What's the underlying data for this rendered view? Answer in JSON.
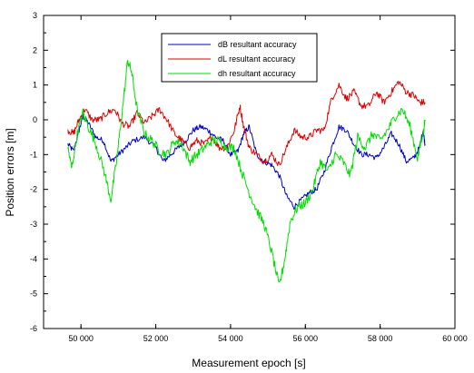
{
  "chart_data": {
    "type": "line",
    "xlabel": "Measurement epoch [s]",
    "ylabel": "Position errors [m]",
    "xlim": [
      49000,
      60000
    ],
    "ylim": [
      -6,
      3
    ],
    "x_ticks": [
      50000,
      52000,
      54000,
      56000,
      58000,
      60000
    ],
    "x_tick_labels": [
      "50 000",
      "52 000",
      "54 000",
      "56 000",
      "58 000",
      "60 000"
    ],
    "y_ticks": [
      -6,
      -5,
      -4,
      -3,
      -2,
      -1,
      0,
      1,
      2,
      3
    ],
    "y_tick_labels": [
      "-6",
      "-5",
      "-4",
      "-3",
      "-2",
      "-1",
      "0",
      "1",
      "2",
      "3"
    ],
    "grid": false,
    "legend_position": "top-center",
    "series": [
      {
        "name": "dB resultant accuracy",
        "color": "#0000cc",
        "points": [
          [
            49650,
            -0.7
          ],
          [
            49800,
            -0.9
          ],
          [
            49950,
            -0.3
          ],
          [
            50050,
            0.1
          ],
          [
            50200,
            -0.1
          ],
          [
            50400,
            -0.5
          ],
          [
            50600,
            -0.6
          ],
          [
            50800,
            -1.2
          ],
          [
            51000,
            -1.0
          ],
          [
            51200,
            -0.8
          ],
          [
            51400,
            -0.6
          ],
          [
            51700,
            -0.5
          ],
          [
            52000,
            -0.8
          ],
          [
            52200,
            -1.2
          ],
          [
            52400,
            -1.0
          ],
          [
            52600,
            -0.8
          ],
          [
            52800,
            -0.6
          ],
          [
            53000,
            -0.3
          ],
          [
            53200,
            -0.2
          ],
          [
            53400,
            -0.3
          ],
          [
            53600,
            -0.5
          ],
          [
            53800,
            -0.6
          ],
          [
            54000,
            -1.0
          ],
          [
            54200,
            -0.9
          ],
          [
            54350,
            -0.4
          ],
          [
            54500,
            -0.2
          ],
          [
            54700,
            -1.0
          ],
          [
            54900,
            -1.2
          ],
          [
            55100,
            -1.3
          ],
          [
            55300,
            -1.6
          ],
          [
            55500,
            -2.2
          ],
          [
            55700,
            -2.5
          ],
          [
            55900,
            -2.3
          ],
          [
            56100,
            -2.1
          ],
          [
            56300,
            -2.0
          ],
          [
            56500,
            -1.5
          ],
          [
            56700,
            -0.8
          ],
          [
            56900,
            -0.2
          ],
          [
            57100,
            -0.3
          ],
          [
            57300,
            -0.7
          ],
          [
            57500,
            -1.0
          ],
          [
            57700,
            -1.0
          ],
          [
            57900,
            -1.1
          ],
          [
            58100,
            -0.8
          ],
          [
            58300,
            -0.4
          ],
          [
            58500,
            -0.7
          ],
          [
            58700,
            -1.2
          ],
          [
            58900,
            -1.1
          ],
          [
            59050,
            -0.8
          ],
          [
            59150,
            -0.3
          ],
          [
            59200,
            -0.7
          ]
        ]
      },
      {
        "name": "dL resultant accuracy",
        "color": "#dd0000",
        "points": [
          [
            49650,
            -0.3
          ],
          [
            49800,
            -0.4
          ],
          [
            49950,
            0.0
          ],
          [
            50100,
            0.3
          ],
          [
            50300,
            0.0
          ],
          [
            50500,
            0.0
          ],
          [
            50700,
            0.2
          ],
          [
            50900,
            0.3
          ],
          [
            51100,
            -0.1
          ],
          [
            51300,
            -0.2
          ],
          [
            51500,
            0.2
          ],
          [
            51700,
            -0.1
          ],
          [
            51900,
            0.1
          ],
          [
            52100,
            0.3
          ],
          [
            52300,
            0.0
          ],
          [
            52500,
            -0.4
          ],
          [
            52700,
            -0.6
          ],
          [
            52900,
            -0.8
          ],
          [
            53100,
            -0.6
          ],
          [
            53300,
            -0.7
          ],
          [
            53500,
            -0.5
          ],
          [
            53700,
            -0.8
          ],
          [
            53900,
            -0.8
          ],
          [
            54100,
            -0.3
          ],
          [
            54250,
            0.4
          ],
          [
            54350,
            -0.2
          ],
          [
            54500,
            -0.8
          ],
          [
            54700,
            -1.0
          ],
          [
            54900,
            -1.2
          ],
          [
            55100,
            -1.0
          ],
          [
            55300,
            -1.3
          ],
          [
            55500,
            -0.8
          ],
          [
            55700,
            -0.3
          ],
          [
            55900,
            -0.5
          ],
          [
            56100,
            -0.5
          ],
          [
            56300,
            -0.3
          ],
          [
            56500,
            -0.3
          ],
          [
            56700,
            0.6
          ],
          [
            56900,
            1.0
          ],
          [
            57100,
            0.6
          ],
          [
            57300,
            0.8
          ],
          [
            57500,
            0.4
          ],
          [
            57700,
            0.4
          ],
          [
            57900,
            0.8
          ],
          [
            58100,
            0.5
          ],
          [
            58300,
            0.8
          ],
          [
            58500,
            1.1
          ],
          [
            58700,
            0.8
          ],
          [
            58900,
            0.7
          ],
          [
            59050,
            0.5
          ],
          [
            59200,
            0.5
          ]
        ]
      },
      {
        "name": "dh resultant accuracy",
        "color": "#00dd00",
        "points": [
          [
            49650,
            -0.8
          ],
          [
            49750,
            -1.4
          ],
          [
            49900,
            -0.4
          ],
          [
            50050,
            0.2
          ],
          [
            50200,
            -0.2
          ],
          [
            50400,
            -0.7
          ],
          [
            50600,
            -1.4
          ],
          [
            50800,
            -2.3
          ],
          [
            50950,
            -1.2
          ],
          [
            51100,
            0.2
          ],
          [
            51250,
            1.7
          ],
          [
            51350,
            1.4
          ],
          [
            51500,
            0.3
          ],
          [
            51700,
            -0.4
          ],
          [
            51900,
            -0.6
          ],
          [
            52100,
            -0.9
          ],
          [
            52300,
            -1.0
          ],
          [
            52500,
            -0.6
          ],
          [
            52700,
            -0.7
          ],
          [
            52900,
            -1.2
          ],
          [
            53100,
            -1.0
          ],
          [
            53300,
            -0.8
          ],
          [
            53500,
            -0.6
          ],
          [
            53700,
            -0.6
          ],
          [
            53900,
            -0.8
          ],
          [
            54100,
            -0.8
          ],
          [
            54300,
            -1.5
          ],
          [
            54500,
            -2.1
          ],
          [
            54700,
            -2.6
          ],
          [
            54900,
            -3.0
          ],
          [
            55100,
            -3.8
          ],
          [
            55300,
            -4.8
          ],
          [
            55450,
            -4.0
          ],
          [
            55600,
            -2.9
          ],
          [
            55800,
            -2.5
          ],
          [
            56000,
            -2.4
          ],
          [
            56200,
            -2.0
          ],
          [
            56400,
            -1.2
          ],
          [
            56600,
            -1.5
          ],
          [
            56800,
            -1.0
          ],
          [
            57000,
            -1.2
          ],
          [
            57200,
            -1.6
          ],
          [
            57400,
            -0.5
          ],
          [
            57600,
            -0.8
          ],
          [
            57800,
            -0.4
          ],
          [
            58000,
            -0.6
          ],
          [
            58200,
            -0.3
          ],
          [
            58400,
            0.1
          ],
          [
            58600,
            0.3
          ],
          [
            58800,
            -0.2
          ],
          [
            59000,
            -1.1
          ],
          [
            59150,
            -0.4
          ],
          [
            59200,
            0.0
          ]
        ]
      }
    ]
  }
}
